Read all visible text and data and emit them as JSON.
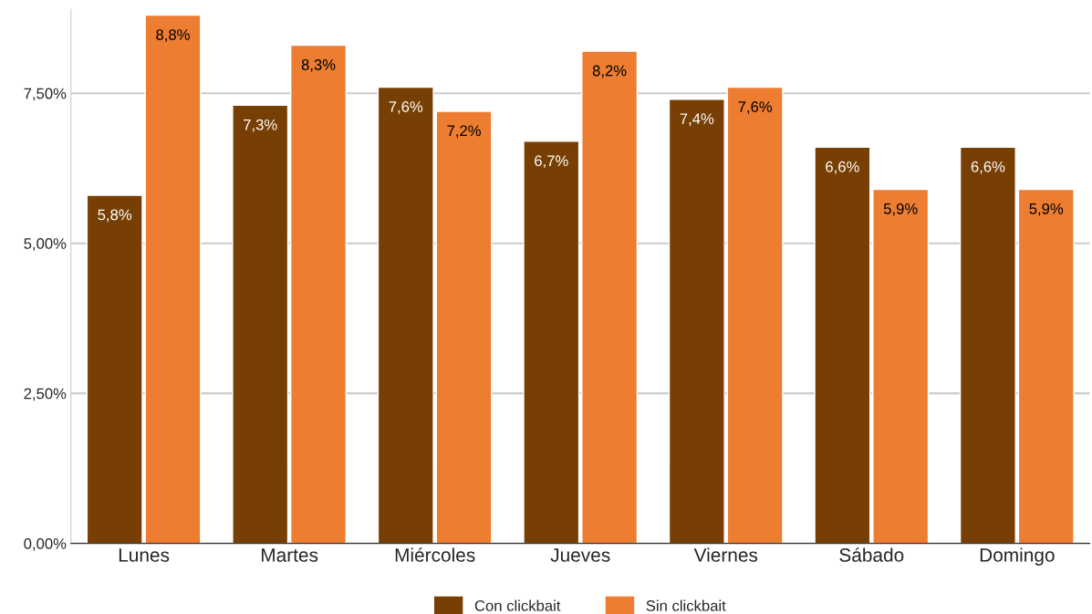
{
  "chart_data": {
    "type": "bar",
    "categories": [
      "Lunes",
      "Martes",
      "Miércoles",
      "Jueves",
      "Viernes",
      "Sábado",
      "Domingo"
    ],
    "series": [
      {
        "name": "Con clickbait",
        "color": "#783f04",
        "values": [
          5.8,
          7.3,
          7.6,
          6.7,
          7.4,
          6.6,
          6.6
        ],
        "value_labels": [
          "5,8%",
          "7,3%",
          "7,6%",
          "6,7%",
          "7,4%",
          "6,6%",
          "6,6%"
        ]
      },
      {
        "name": "Sin clickbait",
        "color": "#ed7d31",
        "values": [
          8.8,
          8.3,
          7.2,
          8.2,
          7.6,
          5.9,
          5.9
        ],
        "value_labels": [
          "8,8%",
          "8,3%",
          "7,2%",
          "8,2%",
          "7,6%",
          "5,9%",
          "5,9%"
        ]
      }
    ],
    "ylim": [
      0,
      8.9
    ],
    "yticks": [
      {
        "value": 0,
        "label": "0,00%"
      },
      {
        "value": 2.5,
        "label": "2,50%"
      },
      {
        "value": 5,
        "label": "5,00%"
      },
      {
        "value": 7.5,
        "label": "7,50%"
      }
    ],
    "grid": "y",
    "legend": "bottom"
  }
}
